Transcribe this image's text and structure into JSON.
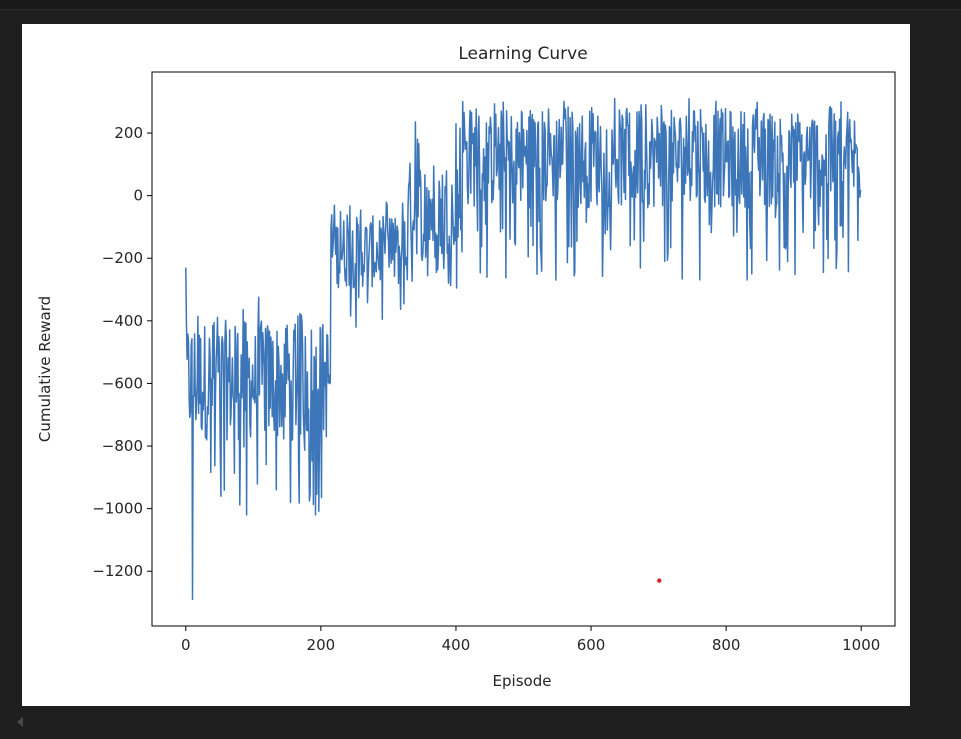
{
  "window": {
    "background": "#1f1f1f",
    "output_cell_background": "#ffffff"
  },
  "chart_data": {
    "type": "line",
    "title": "Learning Curve",
    "xlabel": "Episode",
    "ylabel": "Cumulative Reward",
    "xlim": [
      -50,
      1050
    ],
    "ylim": [
      -1375,
      395
    ],
    "xticks": [
      0,
      200,
      400,
      600,
      800,
      1000
    ],
    "xtick_labels": [
      "0",
      "200",
      "400",
      "600",
      "800",
      "1000"
    ],
    "yticks": [
      200,
      0,
      -200,
      -400,
      -600,
      -800,
      -1000,
      -1200
    ],
    "ytick_labels": [
      "200",
      "0",
      "−200",
      "−400",
      "−600",
      "−800",
      "−1000",
      "−1200"
    ],
    "grid": false,
    "legend": null,
    "series": [
      {
        "name": "cumulative_reward",
        "color": "#3d76b8",
        "n_points": 1000,
        "note": "approximate reconstruction of a noisy per-episode reward curve",
        "phases": [
          {
            "episodes": [
              0,
              215
            ],
            "mean": -590,
            "min": -1020,
            "max": -320,
            "outliers": [
              {
                "episode": 0,
                "value": -230
              },
              {
                "episode": 10,
                "value": -1290
              }
            ]
          },
          {
            "episodes": [
              215,
              330
            ],
            "mean": -180,
            "min": -440,
            "max": -20
          },
          {
            "episodes": [
              330,
              410
            ],
            "mean": -40,
            "min": -300,
            "max": 260
          },
          {
            "episodes": [
              410,
              1000
            ],
            "mean": 120,
            "min": -270,
            "max": 310
          }
        ],
        "notable_points": [
          {
            "episode": 0,
            "value": -230
          },
          {
            "episode": 10,
            "value": -1290
          },
          {
            "episode": 90,
            "value": -1020
          },
          {
            "episode": 192,
            "value": -1020
          },
          {
            "episode": 410,
            "value": 300
          },
          {
            "episode": 548,
            "value": -270
          },
          {
            "episode": 635,
            "value": 310
          },
          {
            "episode": 838,
            "value": -250
          },
          {
            "episode": 998,
            "value": -5
          }
        ]
      }
    ],
    "annotations": [
      {
        "type": "marker",
        "episode": 701,
        "value": -1230,
        "color": "#d62728",
        "description": "small red dot"
      }
    ]
  }
}
